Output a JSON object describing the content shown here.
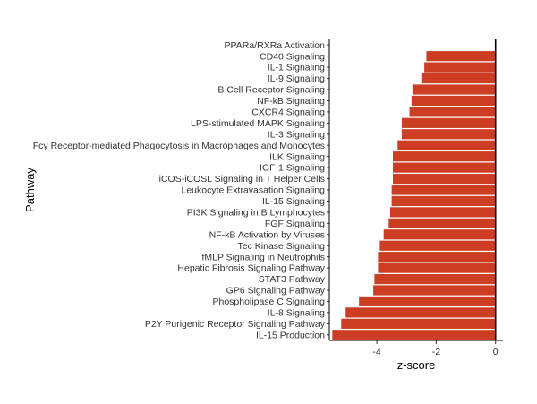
{
  "chart_data": {
    "type": "bar",
    "orientation": "horizontal",
    "xlabel": "z-score",
    "ylabel": "Pathway",
    "xlim": [
      -5.6,
      0.25
    ],
    "xticks": [
      -4,
      -2,
      0
    ],
    "xtick_labels": [
      "-4",
      "-2",
      "0"
    ],
    "grid": false,
    "bar_color": "#cc3d24",
    "categories": [
      "PPARa/RXRa Activation",
      "CD40 Signaling",
      "IL-1 Signaling",
      "IL-9 Signaling",
      "B Cell Receptor Signaling",
      "NF-kB Signaling",
      "CXCR4 Signaling",
      "LPS-stimulated MAPK Signaling",
      "IL-3 Signaling",
      "Fcy Receptor-mediated Phagocytosis in Macrophages and Monocytes",
      "ILK Signaling",
      "IGF-1 Signaling",
      "iCOS-iCOSL Signaling in T Helper Cells",
      "Leukocyte Extravasation Signaling",
      "IL-15 Signaling",
      "PI3K Signaling in B Lymphocytes",
      "FGF Signaling",
      "NF-kB Activation by Viruses",
      "Tec Kinase Signaling",
      "fMLP Signaling in Neutrophils",
      "Hepatic Fibrosis Signaling Pathway",
      "STAT3 Pathway",
      "GP6 Signaling Pathway",
      "Phospholipase C Signaling",
      "IL-8 Signaling",
      "P2Y Purigenic Receptor Signaling Pathway",
      "IL-15 Production"
    ],
    "values": [
      0,
      -2.33,
      -2.4,
      -2.5,
      -2.8,
      -2.83,
      -2.9,
      -3.16,
      -3.16,
      -3.3,
      -3.46,
      -3.46,
      -3.46,
      -3.5,
      -3.5,
      -3.55,
      -3.6,
      -3.77,
      -3.9,
      -3.96,
      -3.96,
      -4.08,
      -4.12,
      -4.6,
      -5.05,
      -5.2,
      -5.5
    ]
  }
}
